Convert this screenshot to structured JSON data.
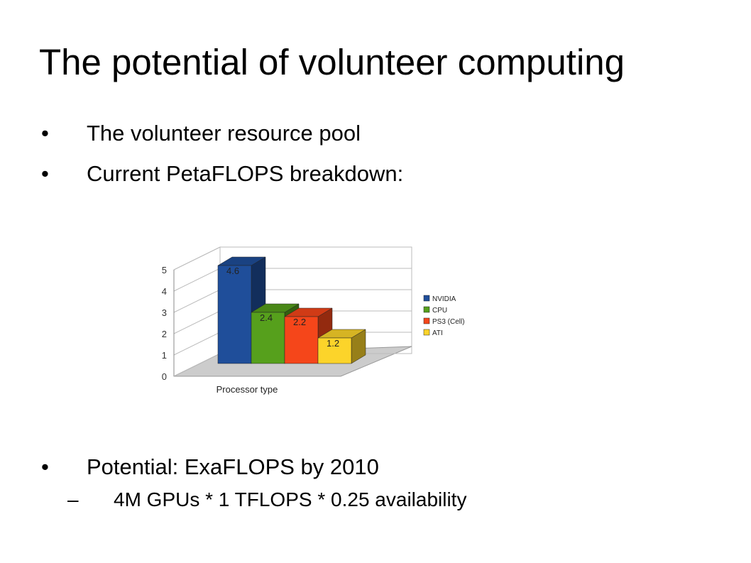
{
  "title": "The potential of volunteer computing",
  "bullets": [
    "The volunteer resource pool",
    "Current PetaFLOPS breakdown:",
    "Potential: ExaFLOPS by 2010"
  ],
  "sub_bullets": [
    "4M GPUs * 1 TFLOPS * 0.25 availability"
  ],
  "chart_data": {
    "type": "bar",
    "x_label": "Processor type",
    "categories": [
      null
    ],
    "series": [
      {
        "name": "NVIDIA",
        "color": "#1f4e9a",
        "values": [
          4.6
        ]
      },
      {
        "name": "CPU",
        "color": "#56a01c",
        "values": [
          2.4
        ]
      },
      {
        "name": "PS3 (Cell)",
        "color": "#f5461a",
        "values": [
          2.2
        ]
      },
      {
        "name": "ATI",
        "color": "#fcd42a",
        "values": [
          1.2
        ]
      }
    ],
    "ylim": [
      0,
      5
    ],
    "yticks": [
      0,
      1,
      2,
      3,
      4,
      5
    ],
    "grid": true,
    "legend": "right"
  }
}
